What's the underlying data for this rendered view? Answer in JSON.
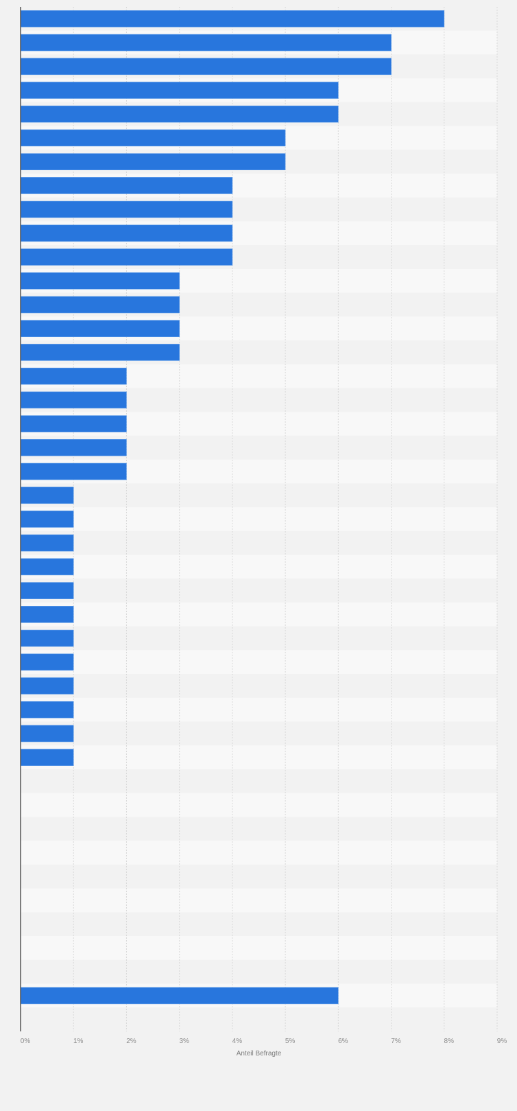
{
  "chart_data": {
    "type": "bar",
    "orientation": "horizontal",
    "title": "",
    "xlabel": "Anteil Befragte",
    "ylabel": "",
    "xlim": [
      0,
      9
    ],
    "x_ticks": [
      "0%",
      "1%",
      "2%",
      "3%",
      "4%",
      "5%",
      "6%",
      "7%",
      "8%",
      "9%"
    ],
    "grid": true,
    "bar_color": "#2876dd",
    "values": [
      8,
      7,
      7,
      6,
      6,
      5,
      5,
      4,
      4,
      4,
      4,
      3,
      3,
      3,
      3,
      2,
      2,
      2,
      2,
      2,
      1,
      1,
      1,
      1,
      1,
      1,
      1,
      1,
      1,
      1,
      1,
      1,
      0,
      0,
      0,
      0,
      0,
      0,
      0,
      0,
      0,
      6,
      0
    ]
  }
}
